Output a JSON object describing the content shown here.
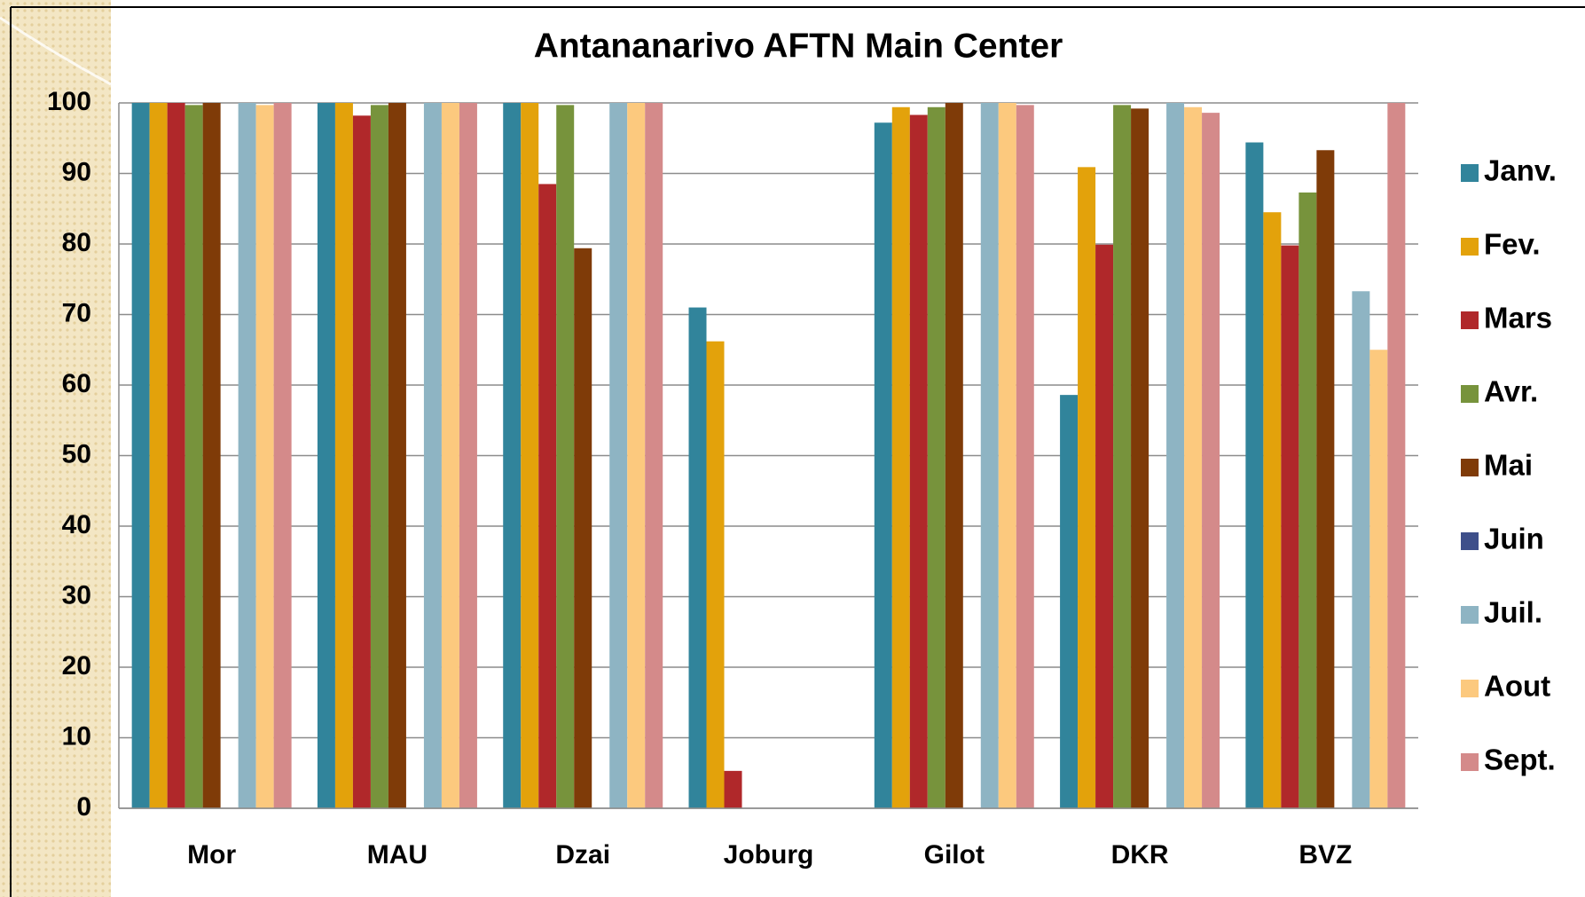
{
  "chart_data": {
    "type": "bar",
    "title": "Antananarivo AFTN Main Center",
    "categories": [
      "Mor",
      "MAU",
      "Dzai",
      "Joburg",
      "Gilot",
      "DKR",
      "BVZ"
    ],
    "series": [
      {
        "name": "Janv.",
        "color": "#31849b",
        "values": [
          100,
          100,
          100,
          71,
          97.2,
          58.6,
          94.4
        ]
      },
      {
        "name": "Fev.",
        "color": "#e3a20b",
        "values": [
          100,
          100,
          100,
          66.2,
          99.4,
          90.9,
          84.5
        ]
      },
      {
        "name": "Mars",
        "color": "#b0282a",
        "values": [
          100,
          98.2,
          88.5,
          5.3,
          98.3,
          79.9,
          79.8
        ]
      },
      {
        "name": "Avr.",
        "color": "#77933c",
        "values": [
          99.7,
          99.7,
          99.7,
          null,
          99.4,
          99.7,
          87.3
        ]
      },
      {
        "name": "Mai",
        "color": "#7f3b08",
        "values": [
          100,
          100,
          79.4,
          null,
          100,
          99.2,
          93.3
        ]
      },
      {
        "name": "Juin",
        "color": "#3e4f8a",
        "values": [
          null,
          null,
          null,
          null,
          null,
          null,
          null
        ]
      },
      {
        "name": "Juil.",
        "color": "#8eb4c3",
        "values": [
          100,
          100,
          100,
          null,
          100,
          100,
          73.3
        ]
      },
      {
        "name": "Aout",
        "color": "#fcc97e",
        "values": [
          99.7,
          100,
          100,
          null,
          100,
          99.4,
          65
        ]
      },
      {
        "name": "Sept.",
        "color": "#d48a8a",
        "values": [
          100,
          100,
          100,
          null,
          99.7,
          98.6,
          100
        ]
      }
    ],
    "ylim": [
      0,
      100
    ],
    "yticks": [
      0,
      10,
      20,
      30,
      40,
      50,
      60,
      70,
      80,
      90,
      100
    ],
    "grid": true,
    "legend": "right"
  }
}
